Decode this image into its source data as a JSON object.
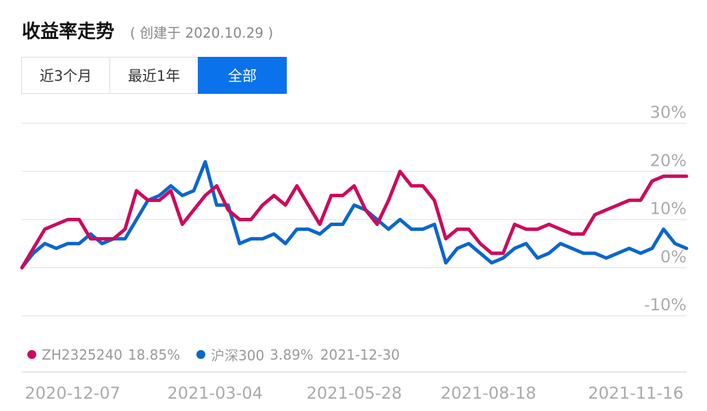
{
  "header": {
    "title": "收益率走势",
    "subtitle": "( 创建于 2020.10.29 )"
  },
  "tabs": {
    "items": [
      "近3个月",
      "最近1年",
      "全部"
    ],
    "active": 2
  },
  "chart_data": {
    "type": "line",
    "x": [
      "2020-11-06",
      "2020-11-13",
      "2020-11-20",
      "2020-11-27",
      "2020-12-04",
      "2020-12-11",
      "2020-12-18",
      "2020-12-25",
      "2021-01-01",
      "2021-01-08",
      "2021-01-15",
      "2021-01-22",
      "2021-01-29",
      "2021-02-05",
      "2021-02-12",
      "2021-02-19",
      "2021-02-26",
      "2021-03-05",
      "2021-03-12",
      "2021-03-19",
      "2021-03-26",
      "2021-04-02",
      "2021-04-09",
      "2021-04-16",
      "2021-04-23",
      "2021-04-30",
      "2021-05-07",
      "2021-05-14",
      "2021-05-21",
      "2021-05-28",
      "2021-06-04",
      "2021-06-11",
      "2021-06-18",
      "2021-06-25",
      "2021-07-02",
      "2021-07-09",
      "2021-07-16",
      "2021-07-23",
      "2021-07-30",
      "2021-08-06",
      "2021-08-13",
      "2021-08-20",
      "2021-08-27",
      "2021-09-03",
      "2021-09-10",
      "2021-09-17",
      "2021-09-24",
      "2021-10-01",
      "2021-10-08",
      "2021-10-15",
      "2021-10-22",
      "2021-10-29",
      "2021-11-05",
      "2021-11-12",
      "2021-11-19",
      "2021-11-26",
      "2021-12-03",
      "2021-12-10",
      "2021-12-17"
    ],
    "series": [
      {
        "name": "ZH2325240",
        "color": "#cc0a5c",
        "values": [
          0,
          4,
          8,
          9,
          10,
          10,
          6,
          6,
          6,
          8,
          16,
          14,
          14,
          16,
          9,
          12,
          15,
          17,
          12,
          10,
          10,
          13,
          15,
          13,
          17,
          13,
          9,
          15,
          15,
          17,
          12,
          9,
          14,
          20,
          17,
          17,
          14,
          6,
          8,
          8,
          5,
          3,
          3,
          9,
          8,
          8,
          9,
          8,
          7,
          7,
          11,
          12,
          13,
          14,
          14,
          18,
          19,
          19,
          19
        ]
      },
      {
        "name": "沪深300",
        "color": "#0a66cc",
        "values": [
          0,
          3,
          5,
          4,
          5,
          5,
          7,
          5,
          6,
          6,
          10,
          14,
          15,
          17,
          15,
          16,
          22,
          13,
          13,
          5,
          6,
          6,
          7,
          5,
          8,
          8,
          7,
          9,
          9,
          13,
          12,
          10,
          8,
          10,
          8,
          8,
          9,
          1,
          4,
          5,
          3,
          1,
          2,
          4,
          5,
          2,
          3,
          5,
          4,
          3,
          3,
          2,
          3,
          4,
          3,
          4,
          8,
          5,
          4
        ]
      }
    ],
    "legend_values": [
      "18.85%",
      "3.89%"
    ],
    "legend_date": "2021-12-30",
    "xlim": [
      "2020-11-06",
      "2021-12-17"
    ],
    "xticks": [
      "2020-12-07",
      "2021-03-04",
      "2021-05-28",
      "2021-08-18",
      "2021-11-16"
    ],
    "ylim": [
      -10,
      30
    ],
    "yticks": [
      {
        "value": -10,
        "label": "-10%"
      },
      {
        "value": 0,
        "label": "0%"
      },
      {
        "value": 10,
        "label": "10%"
      },
      {
        "value": 20,
        "label": "20%"
      },
      {
        "value": 30,
        "label": "30%"
      }
    ],
    "grid": true
  }
}
